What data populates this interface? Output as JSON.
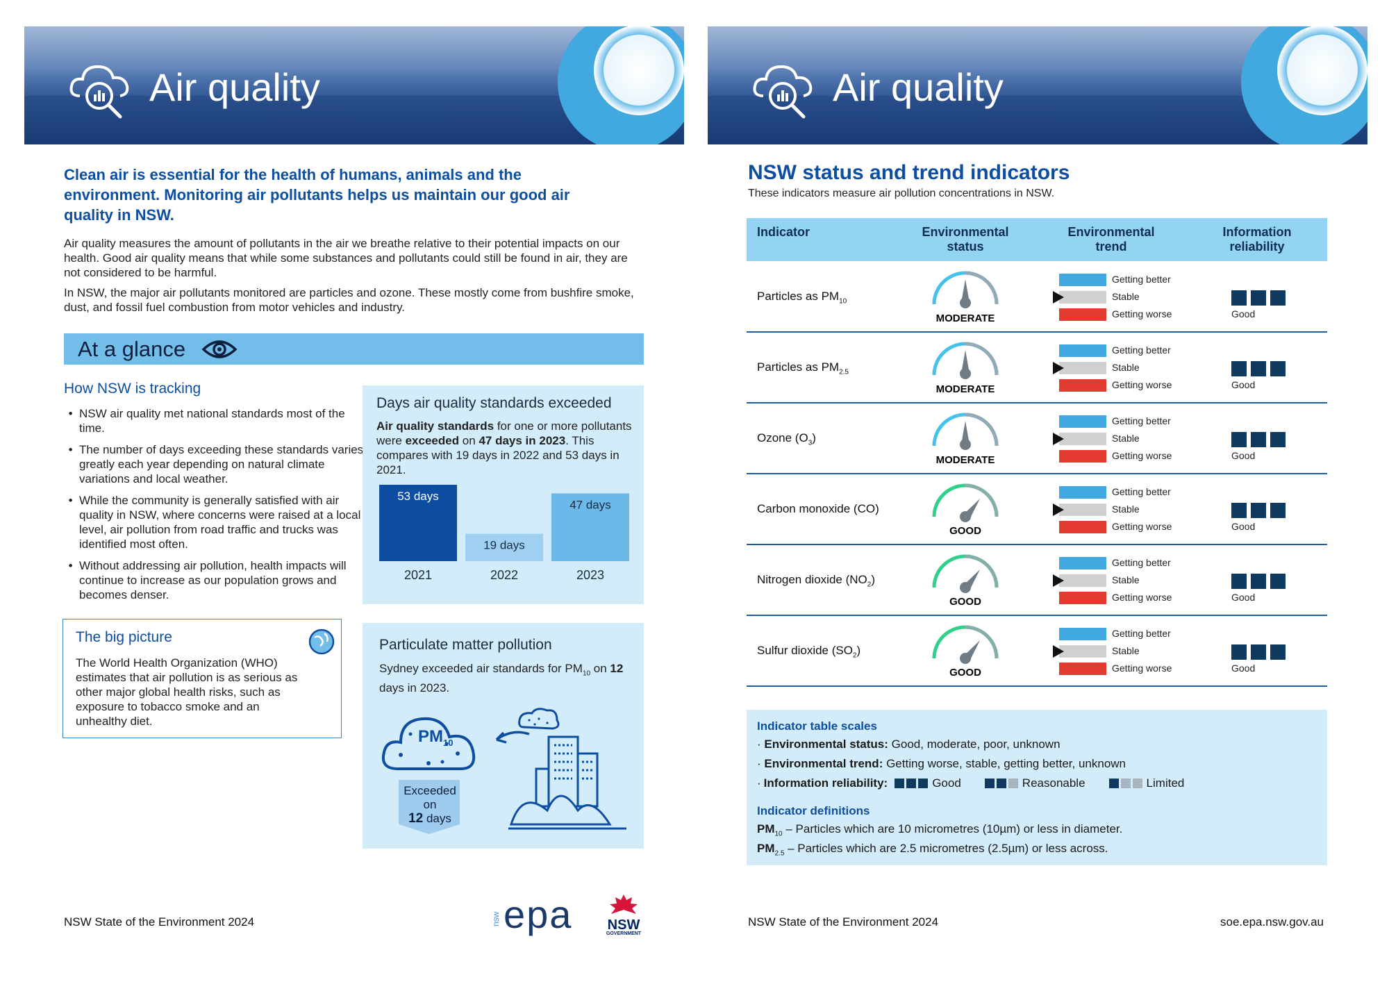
{
  "left": {
    "banner_title": "Air quality",
    "intro_heading": "Clean air is essential for the health of humans, animals and the environment. Monitoring air pollutants helps us maintain our good air quality in NSW.",
    "para1": "Air quality measures the amount of pollutants in the air we breathe relative to their potential impacts on our health. Good air quality means that while some substances and pollutants could still be found in air, they are not considered to be harmful.",
    "para2": "In NSW, the major air pollutants monitored are particles and ozone. These mostly come from bushfire smoke, dust, and fossil fuel combustion from motor vehicles and industry.",
    "glance_title": "At a glance",
    "tracking_title": "How NSW is tracking",
    "bullets": [
      "NSW air quality met national standards most of the time.",
      "The number of days exceeding these standards varies greatly each year depending on natural climate variations and local weather.",
      "While the community is generally satisfied with air quality in NSW, where concerns were raised at a local level, air pollution from road traffic and trucks was identified most often.",
      "Without addressing air pollution, health impacts will continue to increase as our population grows and becomes denser."
    ],
    "big_picture_title": "The big picture",
    "big_picture_text": "The World Health Organization (WHO) estimates that air pollution is as serious as other major global health risks, such as exposure to tobacco smoke and an unhealthy diet.",
    "days_panel": {
      "title": "Days air quality standards exceeded",
      "text_a": "Air quality standards",
      "text_b": " for one or more pollutants were ",
      "text_c": "exceeded",
      "text_d": " on ",
      "text_e": "47 days in 2023",
      "text_f": ". This compares with 19 days in 2022 and 53 days in 2021."
    },
    "pm_panel": {
      "title": "Particulate matter pollution",
      "text_a": "Sydney exceeded air standards for PM",
      "text_sub": "10",
      "text_b": " on ",
      "text_c": "12",
      "text_d": " days in 2023.",
      "cloud_label": "PM",
      "cloud_sub": "10",
      "exceed_1": "Exceeded",
      "exceed_2": "on",
      "exceed_3": "12",
      "exceed_4": " days"
    },
    "footer": "NSW State of the Environment 2024",
    "logo_epa_small": "nsw",
    "logo_epa": "epa",
    "logo_nsw": "NSW",
    "logo_gov": "GOVERNMENT"
  },
  "chart_data": {
    "type": "bar",
    "categories": [
      "2021",
      "2022",
      "2023"
    ],
    "values": [
      53,
      19,
      47
    ],
    "value_labels": [
      "53 days",
      "19 days",
      "47 days"
    ],
    "colors": [
      "#0d4ea2",
      "#9fd0f2",
      "#6cb9e9"
    ],
    "ylim": [
      0,
      53
    ]
  },
  "right": {
    "banner_title": "Air quality",
    "title": "NSW status and trend indicators",
    "subtitle": "These indicators measure air pollution concentrations in NSW.",
    "headers": {
      "indicator": "Indicator",
      "status_1": "Environmental",
      "status_2": "status",
      "trend_1": "Environmental",
      "trend_2": "trend",
      "rel_1": "Information",
      "rel_2": "reliability"
    },
    "trend_labels": {
      "better": "Getting better",
      "stable": "Stable",
      "worse": "Getting worse"
    },
    "rows": [
      {
        "label": "Particles as PM",
        "sub": "10",
        "status": "MODERATE",
        "gauge": "#45c1ec",
        "reliability": "Good"
      },
      {
        "label": "Particles as PM",
        "sub": "2.5",
        "status": "MODERATE",
        "gauge": "#45c1ec",
        "reliability": "Good"
      },
      {
        "label": "Ozone (O",
        "sub": "3",
        "suffix": ")",
        "status": "MODERATE",
        "gauge": "#45c1ec",
        "reliability": "Good"
      },
      {
        "label": "Carbon monoxide (CO)",
        "sub": "",
        "status": "GOOD",
        "gauge": "#2fd08a",
        "reliability": "Good"
      },
      {
        "label": "Nitrogen dioxide (NO",
        "sub": "2",
        "suffix": ")",
        "status": "GOOD",
        "gauge": "#2fd08a",
        "reliability": "Good"
      },
      {
        "label": "Sulfur dioxide (SO",
        "sub": "2",
        "suffix": ")",
        "status": "GOOD",
        "gauge": "#2fd08a",
        "reliability": "Good"
      }
    ],
    "scales": {
      "title": "Indicator table scales",
      "status_label": "Environmental status:",
      "status_values": " Good, moderate, poor, unknown",
      "trend_label": "Environmental trend:",
      "trend_values": " Getting worse, stable, getting better, unknown",
      "rel_label": "Information reliability:",
      "rel_good": "Good",
      "rel_reasonable": "Reasonable",
      "rel_limited": "Limited",
      "defs_title": "Indicator definitions",
      "pm10_a": "PM",
      "pm10_sub": "10",
      "pm10_b": " – Particles which are 10 micrometres (10µm) or less in diameter.",
      "pm25_a": "PM",
      "pm25_sub": "2.5",
      "pm25_b": " – Particles which are 2.5 micrometres (2.5µm) or less across."
    },
    "footer_left": "NSW State of the Environment 2024",
    "footer_right": "soe.epa.nsw.gov.au"
  }
}
